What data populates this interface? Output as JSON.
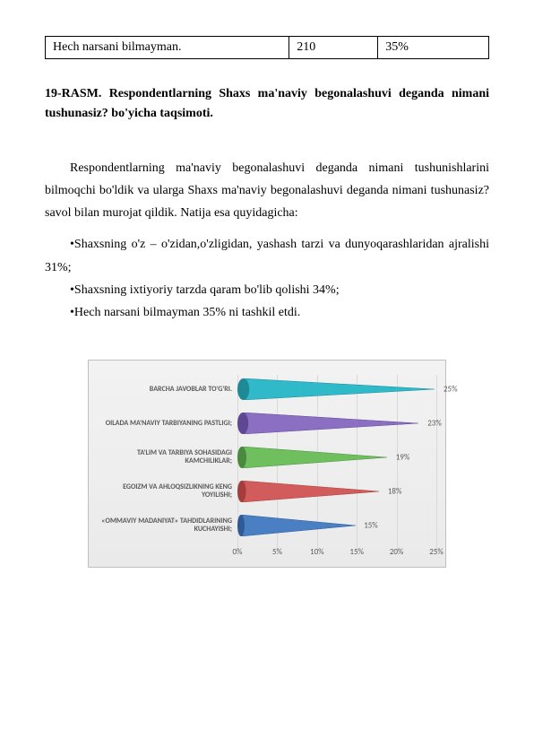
{
  "table": {
    "row": {
      "label": "Hech narsani bilmayman.",
      "count": "210",
      "pct": "35%"
    }
  },
  "caption": "19-RASM. Respondentlarning Shaxs ma'naviy begonalashuvi deganda nimani tushunasiz? bo'yicha taqsimoti.",
  "para": "Respondentlarning ma'naviy begonalashuvi deganda nimani tushunishlarini bilmoqchi bo'ldik va ularga Shaxs ma'naviy begonalashuvi deganda nimani tushunasiz?  savol bilan murojat qildik. Natija esa quyidagicha:",
  "bullets": [
    "•Shaxsning o'z – o'zidan,o'zligidan, yashash tarzi va dunyoqarashlaridan ajralishi 31%;",
    "•Shaxsning ixtiyoriy tarzda qaram bo'lib qolishi 34%;",
    "•Hech narsani bilmayman 35% ni tashkil etdi."
  ],
  "chart": {
    "type": "bar",
    "xmax": 25,
    "xtick_step": 5,
    "ticks": [
      "0%",
      "5%",
      "10%",
      "15%",
      "20%",
      "25%"
    ],
    "grid_color": "#d9d9d9",
    "background": "#eeeeee",
    "label_fontsize": 8,
    "value_fontsize": 9,
    "series": [
      {
        "label": "BARCHA JAVOBLAR TO'G'RI.",
        "value": 25,
        "value_label": "25%",
        "color": "#2fb9c9",
        "dark": "#1e8a96"
      },
      {
        "label": "OILADA MA'NAVIY TARBIYANING PASTLIGI;",
        "value": 23,
        "value_label": "23%",
        "color": "#8b6fc2",
        "dark": "#5f4793"
      },
      {
        "label": "TA'LIM VA TARBIYA SOHASIDAGI KAMCHILIKLAR;",
        "value": 19,
        "value_label": "19%",
        "color": "#6fbf5f",
        "dark": "#4a8a3e"
      },
      {
        "label": "EGOIZM VA AHLOQSIZLIKNING KENG YOYILISHI;",
        "value": 18,
        "value_label": "18%",
        "color": "#d25b5b",
        "dark": "#a43e3e"
      },
      {
        "label": "«OMMAVIY MADANIYAT» TAHDIDLARINING KUCHAYISHI;",
        "value": 15,
        "value_label": "15%",
        "color": "#4a7fc4",
        "dark": "#2f5a94"
      }
    ]
  }
}
